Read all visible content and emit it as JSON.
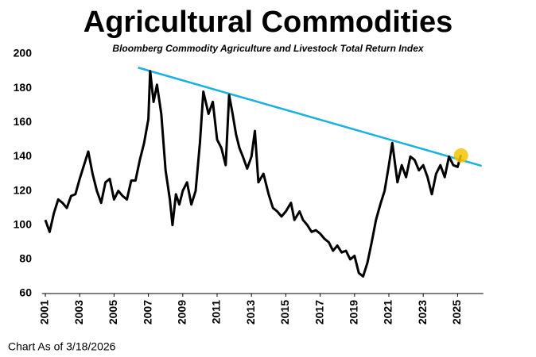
{
  "chart_data": {
    "type": "line",
    "title": "Agricultural Commodities",
    "subtitle": "Bloomberg Commodity Agriculture and Livestock Total Return Index",
    "footnote": "Chart As of 3/18/2026",
    "color": "#000000",
    "x": [
      2001.0,
      2001.25,
      2001.5,
      2001.75,
      2002.0,
      2002.25,
      2002.5,
      2002.75,
      2003.0,
      2003.25,
      2003.5,
      2003.75,
      2004.0,
      2004.25,
      2004.5,
      2004.75,
      2005.0,
      2005.25,
      2005.5,
      2005.75,
      2006.0,
      2006.25,
      2006.5,
      2006.75,
      2007.0,
      2007.1,
      2007.3,
      2007.5,
      2007.75,
      2008.0,
      2008.25,
      2008.4,
      2008.6,
      2008.8,
      2009.0,
      2009.25,
      2009.5,
      2009.75,
      2010.0,
      2010.2,
      2010.5,
      2010.75,
      2011.0,
      2011.25,
      2011.5,
      2011.7,
      2011.9,
      2012.1,
      2012.3,
      2012.5,
      2012.75,
      2013.0,
      2013.2,
      2013.4,
      2013.7,
      2014.0,
      2014.25,
      2014.5,
      2014.75,
      2015.0,
      2015.3,
      2015.5,
      2015.8,
      2016.0,
      2016.25,
      2016.5,
      2016.75,
      2017.0,
      2017.25,
      2017.5,
      2017.75,
      2018.0,
      2018.25,
      2018.5,
      2018.75,
      2019.0,
      2019.25,
      2019.5,
      2019.75,
      2020.0,
      2020.25,
      2020.5,
      2020.75,
      2021.0,
      2021.2,
      2021.5,
      2021.75,
      2022.0,
      2022.25,
      2022.5,
      2022.75,
      2023.0,
      2023.25,
      2023.5,
      2023.75,
      2024.0,
      2024.25,
      2024.5,
      2024.75,
      2025.0,
      2025.2
    ],
    "values": [
      103,
      96,
      107,
      115,
      113,
      110,
      117,
      118,
      127,
      135,
      143,
      130,
      120,
      113,
      125,
      127,
      115,
      120,
      117,
      115,
      126,
      126,
      138,
      148,
      162,
      190,
      172,
      182,
      165,
      132,
      115,
      100,
      118,
      112,
      120,
      125,
      112,
      120,
      148,
      178,
      165,
      172,
      150,
      145,
      135,
      176,
      165,
      153,
      145,
      140,
      133,
      140,
      155,
      125,
      130,
      118,
      110,
      108,
      105,
      108,
      113,
      103,
      108,
      103,
      100,
      96,
      97,
      95,
      92,
      90,
      85,
      88,
      84,
      85,
      80,
      82,
      72,
      70,
      78,
      90,
      103,
      112,
      120,
      135,
      148,
      125,
      135,
      128,
      140,
      138,
      132,
      135,
      128,
      118,
      130,
      135,
      128,
      140,
      135,
      134,
      141
    ],
    "xlim": [
      2000.8,
      2026.5
    ],
    "xticks": [
      2001,
      2003,
      2005,
      2007,
      2009,
      2011,
      2013,
      2015,
      2017,
      2019,
      2021,
      2023,
      2025
    ],
    "ylim": [
      60,
      200
    ],
    "yticks": [
      60,
      80,
      100,
      120,
      140,
      160,
      180,
      200
    ],
    "trendline": {
      "x": [
        2006.4,
        2026.4
      ],
      "y": [
        192,
        134.6
      ],
      "color": "#1ab0e0"
    },
    "highlight": {
      "x": 2025.2,
      "y": 140.7,
      "color": "#f5c400"
    }
  }
}
